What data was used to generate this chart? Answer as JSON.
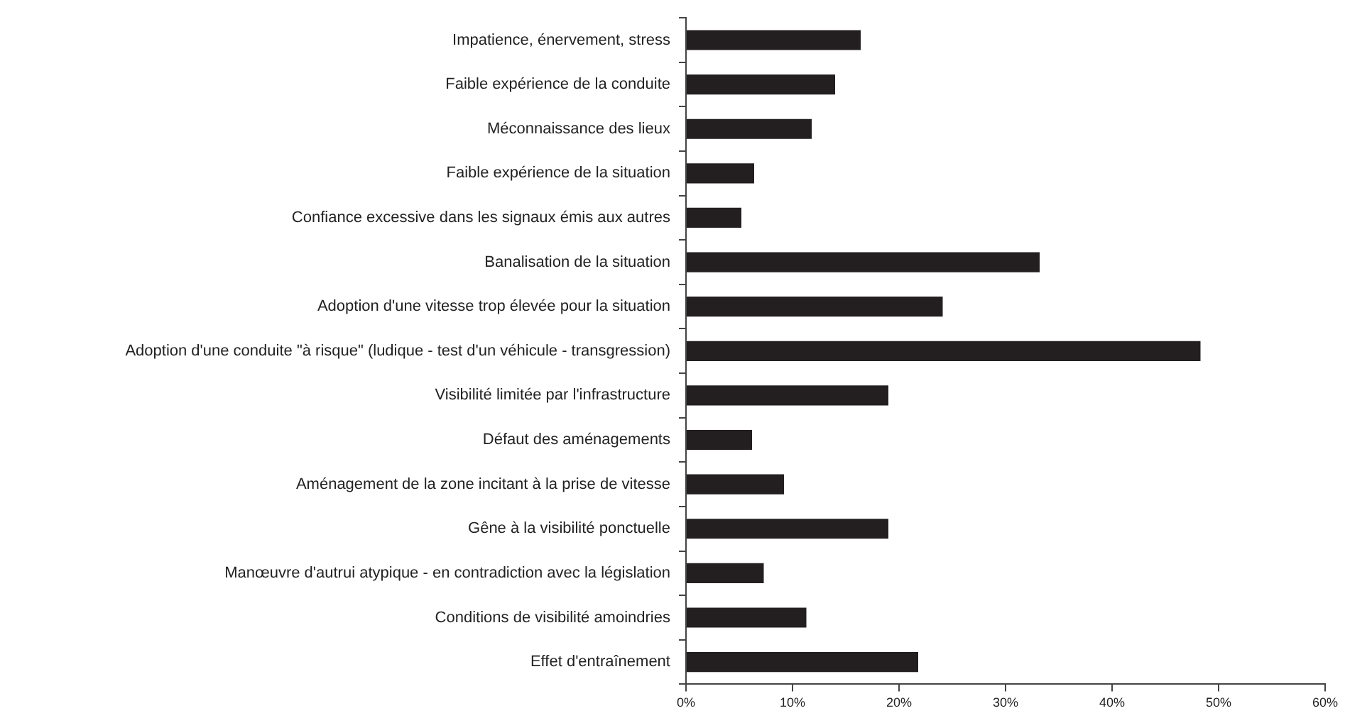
{
  "chart_data": {
    "type": "bar",
    "orientation": "horizontal",
    "categories": [
      "Impatience, énervement, stress",
      "Faible expérience de la conduite",
      "Méconnaissance des lieux",
      "Faible expérience de la situation",
      "Confiance excessive dans les signaux émis aux autres",
      "Banalisation de la situation",
      "Adoption d'une vitesse trop élevée pour la situation",
      "Adoption d'une conduite \"à risque\" (ludique - test d'un véhicule - transgression)",
      "Visibilité limitée par l'infrastructure",
      "Défaut des aménagements",
      "Aménagement de la zone incitant à la prise de vitesse",
      "Gêne à la visibilité ponctuelle",
      "Manœuvre d'autrui atypique - en contradiction avec la législation",
      "Conditions de visibilité amoindries",
      "Effet d'entraînement"
    ],
    "values": [
      16.4,
      14.0,
      11.8,
      6.4,
      5.2,
      33.2,
      24.1,
      48.3,
      19.0,
      6.2,
      9.2,
      19.0,
      7.3,
      11.3,
      21.8
    ],
    "color": "#231f20",
    "xlim": [
      0,
      60
    ],
    "xticks": [
      {
        "value": 0,
        "label": "0%"
      },
      {
        "value": 10,
        "label": "10%"
      },
      {
        "value": 20,
        "label": "20%"
      },
      {
        "value": 30,
        "label": "30%"
      },
      {
        "value": 40,
        "label": "40%"
      },
      {
        "value": 50,
        "label": "50%"
      },
      {
        "value": 60,
        "label": "60%"
      }
    ]
  }
}
